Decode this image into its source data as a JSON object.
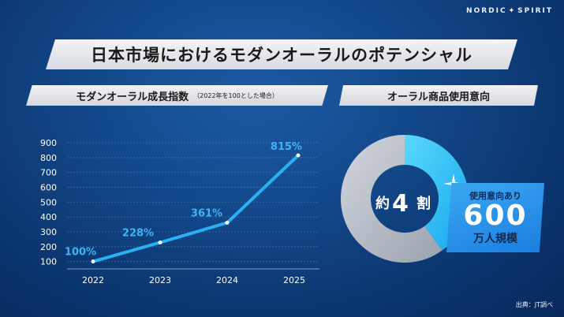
{
  "brand": {
    "left": "NORDIC",
    "right": "SPIRIT"
  },
  "title": "日本市場におけるモダンオーラルのポテンシャル",
  "left_section": {
    "title": "モダンオーラル成長指数",
    "note": "（2022年を100とした場合）"
  },
  "right_section": {
    "title": "オーラル商品使用意向"
  },
  "chart_data": {
    "type": "line",
    "title": "モダンオーラル成長指数",
    "x": [
      "2022",
      "2023",
      "2024",
      "2025"
    ],
    "series": [
      {
        "values": [
          100,
          228,
          361,
          815
        ]
      }
    ],
    "data_labels": [
      "100%",
      "228%",
      "361%",
      "815%"
    ],
    "yticks": [
      100,
      200,
      300,
      400,
      500,
      600,
      700,
      800,
      900
    ],
    "ylim": [
      50,
      900
    ],
    "grid": true
  },
  "donut": {
    "type": "pie",
    "share": 0.4,
    "center_prefix": "約",
    "center_number": "4",
    "center_suffix": "割",
    "colors": {
      "highlight": "#29c3f5",
      "rest": "#c4c9d1"
    }
  },
  "badge": {
    "line1": "使用意向あり",
    "line2": "600",
    "line3": "万人規模"
  },
  "source": "出典：JT調べ",
  "colors": {
    "line": "#29b0f5",
    "accent": "#1a7ee0",
    "bg": "#134a8c"
  }
}
